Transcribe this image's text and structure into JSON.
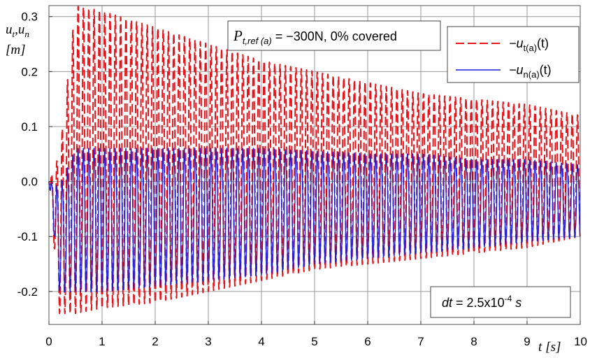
{
  "chart_data": {
    "type": "line",
    "title": "",
    "annotation": {
      "load_symbol": "P",
      "load_subscript": "t,ref (a)",
      "load_text": " = −300N,  0% covered",
      "step_symbol": "dt",
      "step_text": " = 2.5x10",
      "step_exp": "-4",
      "step_unit": " s"
    },
    "xlabel": {
      "var": "t",
      "unit": "[s]"
    },
    "ylabel": {
      "line1": "u",
      "line1_sub": "t",
      "line1_sep": ",u",
      "line1_sub2": "n",
      "line2": "[m]"
    },
    "xlim": [
      0,
      10
    ],
    "ylim": [
      -0.26,
      0.32
    ],
    "xticks": [
      0,
      1,
      2,
      3,
      4,
      5,
      6,
      7,
      8,
      9,
      10
    ],
    "xtick_labels": [
      "0",
      "1",
      "2",
      "3",
      "4",
      "5",
      "6",
      "7",
      "8",
      "9",
      "10"
    ],
    "yticks": [
      0.3,
      0.2,
      0.1,
      0.0,
      -0.1,
      -0.2
    ],
    "ytick_labels": [
      "0.3",
      "0.2",
      "0.1",
      "0.0",
      "-0.1",
      "-0.2"
    ],
    "grid": true,
    "legend": "top-right",
    "series": [
      {
        "name": "−u",
        "name_sub": "t(a)",
        "name_suffix": "(t)",
        "color": "#e8141c",
        "style": "dashed",
        "period": 0.1,
        "envelope_t": [
          0,
          0.2,
          0.5,
          1.0,
          2.0,
          3.0,
          4.0,
          5.0,
          6.0,
          7.0,
          8.0,
          9.0,
          10.0
        ],
        "envelope_max": [
          0.0,
          0.05,
          0.32,
          0.31,
          0.28,
          0.25,
          0.22,
          0.2,
          0.18,
          0.16,
          0.15,
          0.14,
          0.12
        ],
        "envelope_min": [
          0.0,
          -0.24,
          -0.24,
          -0.23,
          -0.22,
          -0.2,
          -0.18,
          -0.16,
          -0.15,
          -0.14,
          -0.13,
          -0.12,
          -0.1
        ]
      },
      {
        "name": "−u",
        "name_sub": "n(a)",
        "name_suffix": "(t)",
        "color": "#1c1cd8",
        "style": "solid",
        "period": 0.1,
        "envelope_t": [
          0,
          0.2,
          0.5,
          1.0,
          2.0,
          3.0,
          4.0,
          5.0,
          6.0,
          7.0,
          8.0,
          9.0,
          10.0
        ],
        "envelope_max": [
          0.0,
          -0.01,
          0.06,
          0.06,
          0.06,
          0.06,
          0.06,
          0.055,
          0.05,
          0.05,
          0.04,
          0.04,
          0.03
        ],
        "envelope_min": [
          0.0,
          -0.2,
          -0.2,
          -0.2,
          -0.19,
          -0.18,
          -0.17,
          -0.15,
          -0.14,
          -0.13,
          -0.12,
          -0.11,
          -0.1
        ]
      }
    ]
  }
}
